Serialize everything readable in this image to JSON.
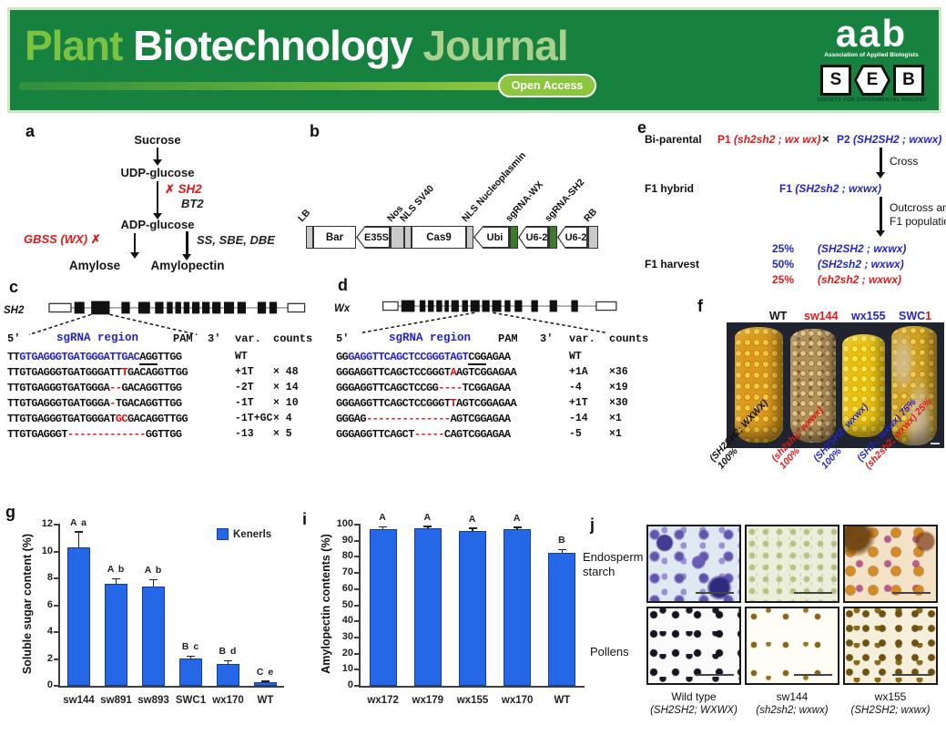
{
  "header": {
    "title_plant": "Plant",
    "title_biotech": "Biotechnology",
    "title_journal": "Journal",
    "open_access": "Open Access",
    "aab": "aab",
    "aab_sub": "Association of Applied Biologists",
    "seb": [
      "S",
      "E",
      "B"
    ],
    "seb_sub": "SOCIETY FOR EXPERIMENTAL BIOLOGY",
    "colors": {
      "banner_green": "#17813F",
      "plant_green": "#7CC242",
      "journal_green": "#A9D18E",
      "accent_green": "#8CC63E"
    }
  },
  "panels": {
    "a": "a",
    "b": "b",
    "c": "c",
    "d": "d",
    "e": "e",
    "f": "f",
    "g": "g",
    "i": "i",
    "j": "j"
  },
  "panel_a": {
    "sucrose": "Sucrose",
    "udp": "UDP-glucose",
    "cross1": "✗",
    "sh2": "SH2",
    "bt2": "BT2",
    "adp": "ADP-glucose",
    "gbss": "GBSS (WX)",
    "cross2": "✗",
    "ss": "SS, SBE, DBE",
    "amylose": "Amylose",
    "amylopectin": "Amylopectin"
  },
  "panel_b": {
    "lb": "LB",
    "bar": "Bar",
    "e35s": "E35S",
    "nos": "Nos",
    "nls_sv40": "NLS SV40",
    "cas9": "Cas9",
    "nls_nucleo": "NLS Nucleoplasmin",
    "ubi": "Ubi",
    "sg_wx": "sgRNA-WX",
    "u62_1": "U6-2",
    "sg_sh2": "sgRNA-SH2",
    "u62_2": "U6-2",
    "rb": "RB"
  },
  "panel_c": {
    "gene": "SH2",
    "header": {
      "five": "5'",
      "sgrna": "sgRNA region",
      "pam": "PAM",
      "three": "3'",
      "var": "var.",
      "counts": "counts"
    },
    "rows": [
      {
        "segs": [
          [
            "k",
            "TT"
          ],
          [
            "b",
            "GTGAGGGTGATGGGATTGAC"
          ],
          [
            "u",
            "AGG"
          ],
          [
            "k",
            "TTGG"
          ]
        ],
        "var": "WT",
        "count": ""
      },
      {
        "segs": [
          [
            "k",
            "TTGTGAGGGTGATGGGATT"
          ],
          [
            "r",
            "T"
          ],
          [
            "k",
            "GACAGGTTGG"
          ]
        ],
        "var": "+1T",
        "count": "× 48"
      },
      {
        "segs": [
          [
            "k",
            "TTGTGAGGGTGATGGGA"
          ],
          [
            "r",
            "--"
          ],
          [
            "k",
            "GACAGGTTGG"
          ]
        ],
        "var": "-2T",
        "count": "× 14"
      },
      {
        "segs": [
          [
            "k",
            "TTGTGAGGGTGATGGGA"
          ],
          [
            "r",
            "-"
          ],
          [
            "k",
            "TGACAGGTTGG"
          ]
        ],
        "var": "-1T",
        "count": "× 10"
      },
      {
        "segs": [
          [
            "k",
            "TTGTGAGGGTGATGGGAT"
          ],
          [
            "r",
            "GC"
          ],
          [
            "k",
            "GACAGGTTGG"
          ]
        ],
        "var": "-1T+GC",
        "count": "× 4"
      },
      {
        "segs": [
          [
            "k",
            "TTGTGAGGGT"
          ],
          [
            "r",
            "-------------"
          ],
          [
            "k",
            "GGTTGG"
          ]
        ],
        "var": "-13",
        "count": "× 5"
      }
    ]
  },
  "panel_d": {
    "gene": "Wx",
    "header": {
      "five": "5'",
      "sgrna": "sgRNA region",
      "pam": "PAM",
      "three": "3'",
      "var": "var.",
      "counts": "counts"
    },
    "rows": [
      {
        "segs": [
          [
            "k",
            "GG"
          ],
          [
            "b",
            "GAGGTTCAGCTCCGGGTAGT"
          ],
          [
            "u",
            "CGG"
          ],
          [
            "k",
            "AGAA"
          ]
        ],
        "var": "WT",
        "count": ""
      },
      {
        "segs": [
          [
            "k",
            "GGGAGGTTCAGCTCCGGGT"
          ],
          [
            "r",
            "A"
          ],
          [
            "k",
            "AGTCGGAGAA"
          ]
        ],
        "var": "+1A",
        "count": "×36"
      },
      {
        "segs": [
          [
            "k",
            "GGGAGGTTCAGCTCCGG"
          ],
          [
            "r",
            "----"
          ],
          [
            "k",
            "TCGGAGAA"
          ]
        ],
        "var": "-4",
        "count": "×19"
      },
      {
        "segs": [
          [
            "k",
            "GGGAGGTTCAGCTCCGGGT"
          ],
          [
            "r",
            "T"
          ],
          [
            "k",
            "AGTCGGAGAA"
          ]
        ],
        "var": "+1T",
        "count": "×30"
      },
      {
        "segs": [
          [
            "k",
            "GGGAG"
          ],
          [
            "r",
            "--------------"
          ],
          [
            "k",
            "AGTCGGAGAA"
          ]
        ],
        "var": "-14",
        "count": "×1"
      },
      {
        "segs": [
          [
            "k",
            "GGGAGGTTCAGCT"
          ],
          [
            "r",
            "-----"
          ],
          [
            "k",
            "CAGTCGGAGAA"
          ]
        ],
        "var": "-5",
        "count": "×1"
      }
    ]
  },
  "panel_e": {
    "biparental": "Bi-parental",
    "p1": "P1",
    "p1_geno": "(sh2sh2 ; wx wx)",
    "times": "×",
    "p2": "P2",
    "p2_geno": "(SH2SH2 ; wxwx)",
    "cross": "Cross",
    "f1_hybrid": "F1 hybrid",
    "f1": "F1",
    "f1_geno": "(SH2sh2 ; wxwx)",
    "outcross1": "Outcross among",
    "outcross2": "F1 populations",
    "f1_harvest": "F1 harvest",
    "harvest": [
      {
        "pct": "25%",
        "geno": "(SH2SH2 ; wxwx)"
      },
      {
        "pct": "50%",
        "geno": "(SH2sh2 ; wxwx)"
      },
      {
        "pct": "25%",
        "geno": "(sh2sh2 ; wxwx)"
      }
    ]
  },
  "panel_f": {
    "col_wt": "WT",
    "col_sw144": "sw144",
    "col_wx155": "wx155",
    "col_swc": "SWC",
    "col_swc_num": "1",
    "rot_labels": [
      {
        "l1": "(SH2SH2; WXWX)",
        "l2": "100%"
      },
      {
        "l1": "(sh2sh2; wxwx)",
        "l2": "100%"
      },
      {
        "l1": "(SH2SH2; wxwx)",
        "l2": "100%"
      },
      {
        "l1": "(SH2-; wxwx) 75%",
        "l2": "(sh2sh2; wxwx) 25%"
      }
    ]
  },
  "chart_data": [
    {
      "type": "bar",
      "title": "",
      "ylabel": "Soluble sugar content (%)",
      "xlabel": "",
      "categories": [
        "sw144",
        "sw891",
        "sw893",
        "SWC1",
        "wx170",
        "WT"
      ],
      "values": [
        10.3,
        7.6,
        7.4,
        2.05,
        1.6,
        0.25
      ],
      "errors": [
        1.1,
        0.3,
        0.45,
        0.1,
        0.2,
        0.05
      ],
      "letters": [
        "A a",
        "A b",
        "A b",
        "B c",
        "B d",
        "C e"
      ],
      "legend": [
        "Kenerls"
      ],
      "legend_position": "top-right",
      "ylim": [
        0,
        12
      ],
      "ytick": 2,
      "grid": false,
      "bar_color": "#2667E8"
    },
    {
      "type": "bar",
      "title": "",
      "ylabel": "Amylopectin contents (%)",
      "xlabel": "",
      "categories": [
        "wx172",
        "wx179",
        "wx155",
        "wx170",
        "WT"
      ],
      "values": [
        97,
        97.5,
        96,
        97,
        82.5
      ],
      "errors": [
        1.2,
        0.8,
        1.2,
        0.8,
        1.5
      ],
      "letters": [
        "A",
        "A",
        "A",
        "A",
        "B"
      ],
      "legend": [],
      "ylim": [
        0,
        100
      ],
      "ytick": 10,
      "grid": false,
      "bar_color": "#2667E8"
    }
  ],
  "panel_j": {
    "row1a": "Endosperm",
    "row1b": "starch",
    "row2": "Pollens",
    "captions": [
      {
        "name": "Wild type",
        "geno": "(SH2SH2; WXWX)"
      },
      {
        "name": "sw144",
        "geno": "(sh2sh2; wxwx)"
      },
      {
        "name": "wx155",
        "geno": "(SH2SH2; wxwx)"
      }
    ]
  }
}
